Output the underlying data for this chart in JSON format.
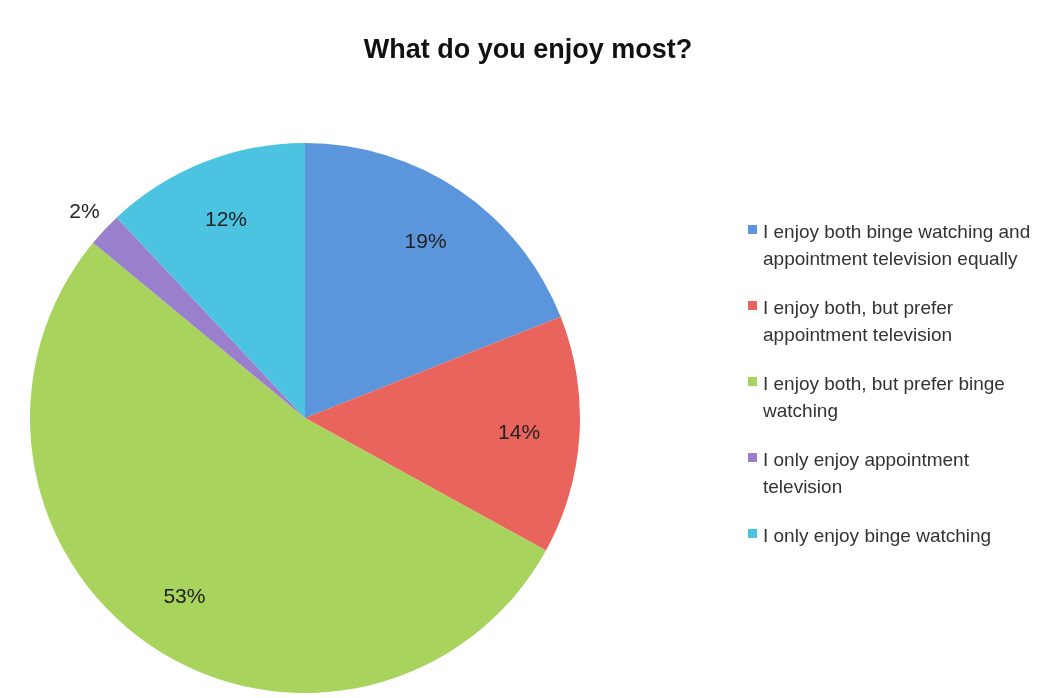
{
  "chart_data": {
    "type": "pie",
    "title": "What do you enjoy most?",
    "categories": [
      "I enjoy both binge watching and appointment television equally",
      "I enjoy both, but prefer appointment television",
      "I enjoy both, but prefer binge watching",
      "I only enjoy appointment television",
      "I only enjoy binge watching"
    ],
    "values": [
      19,
      14,
      53,
      2,
      12
    ],
    "colors": [
      "#5b95dc",
      "#e8645c",
      "#a8d35c",
      "#9a7fcc",
      "#4cc3e0"
    ],
    "value_labels": [
      "19%",
      "14%",
      "53%",
      "2%",
      "12%"
    ],
    "legend": "right"
  }
}
